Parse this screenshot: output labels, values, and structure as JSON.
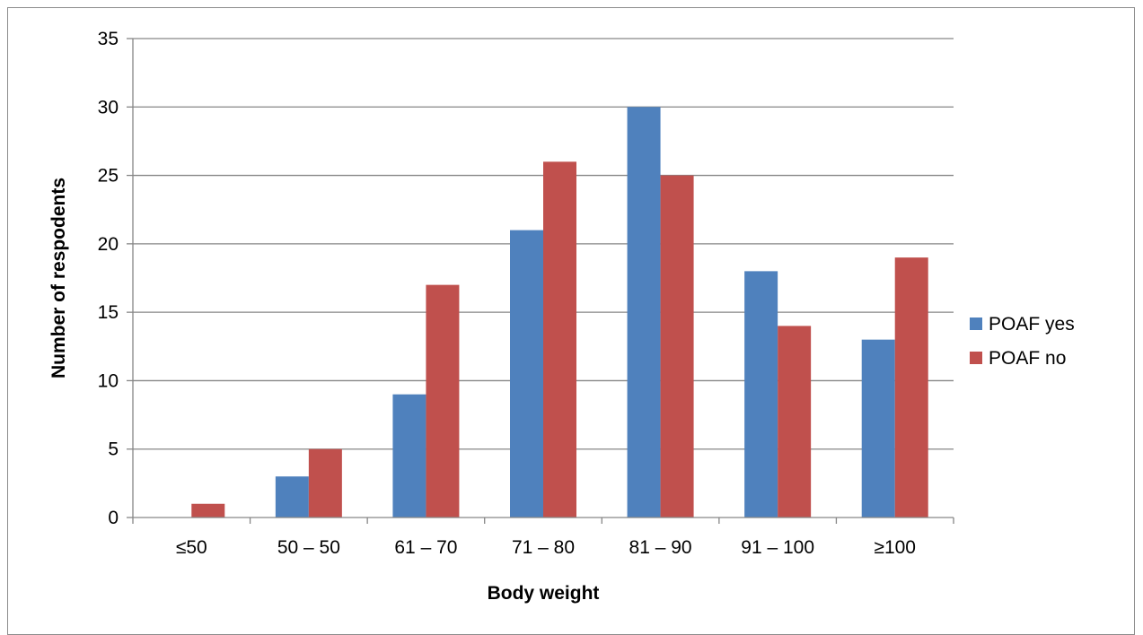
{
  "chart_data": {
    "type": "bar",
    "title": "",
    "xlabel": "Body weight",
    "ylabel": "Number of respodents",
    "categories": [
      "≤50",
      "50 – 50",
      "61 – 70",
      "71 – 80",
      "81 – 90",
      "91 – 100",
      "≥100"
    ],
    "series": [
      {
        "name": "POAF yes",
        "color": "#4F81BD",
        "values": [
          0,
          3,
          9,
          21,
          30,
          18,
          13
        ]
      },
      {
        "name": "POAF no",
        "color": "#C0504D",
        "values": [
          1,
          5,
          17,
          26,
          25,
          14,
          19
        ]
      }
    ],
    "ylim": [
      0,
      35
    ],
    "yticks": [
      0,
      5,
      10,
      15,
      20,
      25,
      30,
      35
    ],
    "grid": true,
    "legend": "right"
  }
}
